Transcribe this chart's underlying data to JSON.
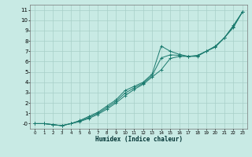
{
  "xlabel": "Humidex (Indice chaleur)",
  "bg_color": "#c8eae4",
  "grid_color": "#a8cfc8",
  "line_color": "#1a7a6e",
  "xlim": [
    -0.5,
    23.5
  ],
  "ylim": [
    -0.5,
    11.5
  ],
  "xticks": [
    0,
    1,
    2,
    3,
    4,
    5,
    6,
    7,
    8,
    9,
    10,
    11,
    12,
    13,
    14,
    15,
    16,
    17,
    18,
    19,
    20,
    21,
    22,
    23
  ],
  "yticks": [
    0,
    1,
    2,
    3,
    4,
    5,
    6,
    7,
    8,
    9,
    10,
    11
  ],
  "ytick_labels": [
    "-0",
    "1",
    "2",
    "3",
    "4",
    "5",
    "6",
    "7",
    "8",
    "9",
    "10",
    "11"
  ],
  "series1_x": [
    0,
    1,
    2,
    3,
    4,
    5,
    6,
    7,
    8,
    9,
    10,
    11,
    12,
    13,
    14,
    15,
    16,
    17,
    18,
    19,
    20,
    21,
    22,
    23
  ],
  "series1_y": [
    0,
    0,
    -0.1,
    -0.2,
    0.0,
    0.2,
    0.5,
    0.9,
    1.4,
    2.0,
    2.7,
    3.3,
    3.8,
    4.5,
    5.2,
    6.3,
    6.5,
    6.5,
    6.5,
    7.0,
    7.5,
    8.3,
    9.5,
    10.8
  ],
  "series2_x": [
    0,
    1,
    2,
    3,
    4,
    5,
    6,
    7,
    8,
    9,
    10,
    11,
    12,
    13,
    14,
    15,
    16,
    17,
    18,
    19,
    20,
    21,
    22,
    23
  ],
  "series2_y": [
    0,
    0,
    -0.1,
    -0.2,
    0.0,
    0.3,
    0.7,
    1.1,
    1.7,
    2.3,
    3.2,
    3.6,
    4.0,
    4.8,
    7.5,
    7.0,
    6.7,
    6.5,
    6.6,
    7.0,
    7.4,
    8.3,
    9.3,
    10.8
  ],
  "series3_x": [
    0,
    1,
    2,
    3,
    4,
    5,
    6,
    7,
    8,
    9,
    10,
    11,
    12,
    13,
    14,
    15,
    16,
    17,
    18,
    19,
    20,
    21,
    22,
    23
  ],
  "series3_y": [
    0,
    0,
    -0.1,
    -0.2,
    0.0,
    0.25,
    0.6,
    1.0,
    1.55,
    2.15,
    2.95,
    3.45,
    3.9,
    4.65,
    6.35,
    6.65,
    6.6,
    6.5,
    6.55,
    7.0,
    7.45,
    8.3,
    9.4,
    10.8
  ]
}
